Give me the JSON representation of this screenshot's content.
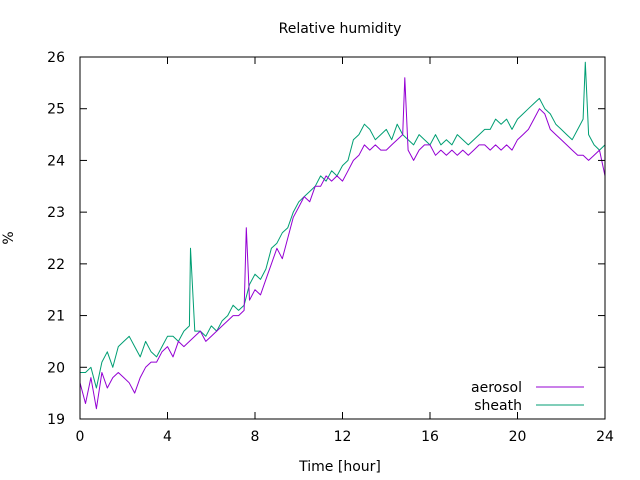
{
  "chart_data": {
    "type": "line",
    "title": "Relative humidity",
    "xlabel": "Time [hour]",
    "ylabel": "%",
    "xlim": [
      0,
      24
    ],
    "ylim": [
      19,
      26
    ],
    "xticks": [
      0,
      4,
      8,
      12,
      16,
      20,
      24
    ],
    "yticks": [
      19,
      20,
      21,
      22,
      23,
      24,
      25,
      26
    ],
    "legend_position": "bottom-right",
    "grid": false,
    "series": [
      {
        "name": "aerosol",
        "color": "#9400d3",
        "points": [
          [
            0.0,
            19.7
          ],
          [
            0.25,
            19.3
          ],
          [
            0.5,
            19.8
          ],
          [
            0.75,
            19.2
          ],
          [
            1.0,
            19.9
          ],
          [
            1.25,
            19.6
          ],
          [
            1.5,
            19.8
          ],
          [
            1.75,
            19.9
          ],
          [
            2.0,
            19.8
          ],
          [
            2.25,
            19.7
          ],
          [
            2.5,
            19.5
          ],
          [
            2.75,
            19.8
          ],
          [
            3.0,
            20.0
          ],
          [
            3.25,
            20.1
          ],
          [
            3.5,
            20.1
          ],
          [
            3.75,
            20.3
          ],
          [
            4.0,
            20.4
          ],
          [
            4.25,
            20.2
          ],
          [
            4.5,
            20.5
          ],
          [
            4.75,
            20.4
          ],
          [
            5.0,
            20.5
          ],
          [
            5.25,
            20.6
          ],
          [
            5.5,
            20.7
          ],
          [
            5.75,
            20.5
          ],
          [
            6.0,
            20.6
          ],
          [
            6.25,
            20.7
          ],
          [
            6.5,
            20.8
          ],
          [
            6.75,
            20.9
          ],
          [
            7.0,
            21.0
          ],
          [
            7.25,
            21.0
          ],
          [
            7.5,
            21.1
          ],
          [
            7.6,
            22.7
          ],
          [
            7.75,
            21.3
          ],
          [
            8.0,
            21.5
          ],
          [
            8.25,
            21.4
          ],
          [
            8.5,
            21.7
          ],
          [
            8.75,
            22.0
          ],
          [
            9.0,
            22.3
          ],
          [
            9.25,
            22.1
          ],
          [
            9.5,
            22.5
          ],
          [
            9.75,
            22.9
          ],
          [
            10.0,
            23.1
          ],
          [
            10.25,
            23.3
          ],
          [
            10.5,
            23.2
          ],
          [
            10.75,
            23.5
          ],
          [
            11.0,
            23.5
          ],
          [
            11.25,
            23.7
          ],
          [
            11.5,
            23.6
          ],
          [
            11.75,
            23.7
          ],
          [
            12.0,
            23.6
          ],
          [
            12.25,
            23.8
          ],
          [
            12.5,
            24.0
          ],
          [
            12.75,
            24.1
          ],
          [
            13.0,
            24.3
          ],
          [
            13.25,
            24.2
          ],
          [
            13.5,
            24.3
          ],
          [
            13.75,
            24.2
          ],
          [
            14.0,
            24.2
          ],
          [
            14.25,
            24.3
          ],
          [
            14.5,
            24.4
          ],
          [
            14.75,
            24.5
          ],
          [
            14.85,
            25.6
          ],
          [
            15.0,
            24.2
          ],
          [
            15.25,
            24.0
          ],
          [
            15.5,
            24.2
          ],
          [
            15.75,
            24.3
          ],
          [
            16.0,
            24.3
          ],
          [
            16.25,
            24.1
          ],
          [
            16.5,
            24.2
          ],
          [
            16.75,
            24.1
          ],
          [
            17.0,
            24.2
          ],
          [
            17.25,
            24.1
          ],
          [
            17.5,
            24.2
          ],
          [
            17.75,
            24.1
          ],
          [
            18.0,
            24.2
          ],
          [
            18.25,
            24.3
          ],
          [
            18.5,
            24.3
          ],
          [
            18.75,
            24.2
          ],
          [
            19.0,
            24.3
          ],
          [
            19.25,
            24.2
          ],
          [
            19.5,
            24.3
          ],
          [
            19.75,
            24.2
          ],
          [
            20.0,
            24.4
          ],
          [
            20.25,
            24.5
          ],
          [
            20.5,
            24.6
          ],
          [
            20.75,
            24.8
          ],
          [
            21.0,
            25.0
          ],
          [
            21.25,
            24.9
          ],
          [
            21.5,
            24.6
          ],
          [
            21.75,
            24.5
          ],
          [
            22.0,
            24.4
          ],
          [
            22.25,
            24.3
          ],
          [
            22.5,
            24.2
          ],
          [
            22.75,
            24.1
          ],
          [
            23.0,
            24.1
          ],
          [
            23.25,
            24.0
          ],
          [
            23.5,
            24.1
          ],
          [
            23.75,
            24.2
          ],
          [
            24.0,
            23.7
          ]
        ]
      },
      {
        "name": "sheath",
        "color": "#009e73",
        "points": [
          [
            0.0,
            19.9
          ],
          [
            0.25,
            19.9
          ],
          [
            0.5,
            20.0
          ],
          [
            0.75,
            19.6
          ],
          [
            1.0,
            20.1
          ],
          [
            1.25,
            20.3
          ],
          [
            1.5,
            20.0
          ],
          [
            1.75,
            20.4
          ],
          [
            2.0,
            20.5
          ],
          [
            2.25,
            20.6
          ],
          [
            2.5,
            20.4
          ],
          [
            2.75,
            20.2
          ],
          [
            3.0,
            20.5
          ],
          [
            3.25,
            20.3
          ],
          [
            3.5,
            20.2
          ],
          [
            3.75,
            20.4
          ],
          [
            4.0,
            20.6
          ],
          [
            4.25,
            20.6
          ],
          [
            4.5,
            20.5
          ],
          [
            4.75,
            20.7
          ],
          [
            5.0,
            20.8
          ],
          [
            5.05,
            22.3
          ],
          [
            5.25,
            20.7
          ],
          [
            5.5,
            20.7
          ],
          [
            5.75,
            20.6
          ],
          [
            6.0,
            20.8
          ],
          [
            6.25,
            20.7
          ],
          [
            6.5,
            20.9
          ],
          [
            6.75,
            21.0
          ],
          [
            7.0,
            21.2
          ],
          [
            7.25,
            21.1
          ],
          [
            7.5,
            21.2
          ],
          [
            7.75,
            21.6
          ],
          [
            8.0,
            21.8
          ],
          [
            8.25,
            21.7
          ],
          [
            8.5,
            21.9
          ],
          [
            8.75,
            22.3
          ],
          [
            9.0,
            22.4
          ],
          [
            9.25,
            22.6
          ],
          [
            9.5,
            22.7
          ],
          [
            9.75,
            23.0
          ],
          [
            10.0,
            23.2
          ],
          [
            10.25,
            23.3
          ],
          [
            10.5,
            23.4
          ],
          [
            10.75,
            23.5
          ],
          [
            11.0,
            23.7
          ],
          [
            11.25,
            23.6
          ],
          [
            11.5,
            23.8
          ],
          [
            11.75,
            23.7
          ],
          [
            12.0,
            23.9
          ],
          [
            12.25,
            24.0
          ],
          [
            12.5,
            24.4
          ],
          [
            12.75,
            24.5
          ],
          [
            13.0,
            24.7
          ],
          [
            13.25,
            24.6
          ],
          [
            13.5,
            24.4
          ],
          [
            13.75,
            24.5
          ],
          [
            14.0,
            24.6
          ],
          [
            14.25,
            24.4
          ],
          [
            14.5,
            24.7
          ],
          [
            14.75,
            24.5
          ],
          [
            15.0,
            24.4
          ],
          [
            15.25,
            24.3
          ],
          [
            15.5,
            24.5
          ],
          [
            15.75,
            24.4
          ],
          [
            16.0,
            24.3
          ],
          [
            16.25,
            24.5
          ],
          [
            16.5,
            24.3
          ],
          [
            16.75,
            24.4
          ],
          [
            17.0,
            24.3
          ],
          [
            17.25,
            24.5
          ],
          [
            17.5,
            24.4
          ],
          [
            17.75,
            24.3
          ],
          [
            18.0,
            24.4
          ],
          [
            18.25,
            24.5
          ],
          [
            18.5,
            24.6
          ],
          [
            18.75,
            24.6
          ],
          [
            19.0,
            24.8
          ],
          [
            19.25,
            24.7
          ],
          [
            19.5,
            24.8
          ],
          [
            19.75,
            24.6
          ],
          [
            20.0,
            24.8
          ],
          [
            20.25,
            24.9
          ],
          [
            20.5,
            25.0
          ],
          [
            20.75,
            25.1
          ],
          [
            21.0,
            25.2
          ],
          [
            21.25,
            25.0
          ],
          [
            21.5,
            24.9
          ],
          [
            21.75,
            24.7
          ],
          [
            22.0,
            24.6
          ],
          [
            22.25,
            24.5
          ],
          [
            22.5,
            24.4
          ],
          [
            22.75,
            24.6
          ],
          [
            23.0,
            24.8
          ],
          [
            23.1,
            25.9
          ],
          [
            23.25,
            24.5
          ],
          [
            23.5,
            24.3
          ],
          [
            23.75,
            24.2
          ],
          [
            24.0,
            24.3
          ]
        ]
      }
    ]
  }
}
